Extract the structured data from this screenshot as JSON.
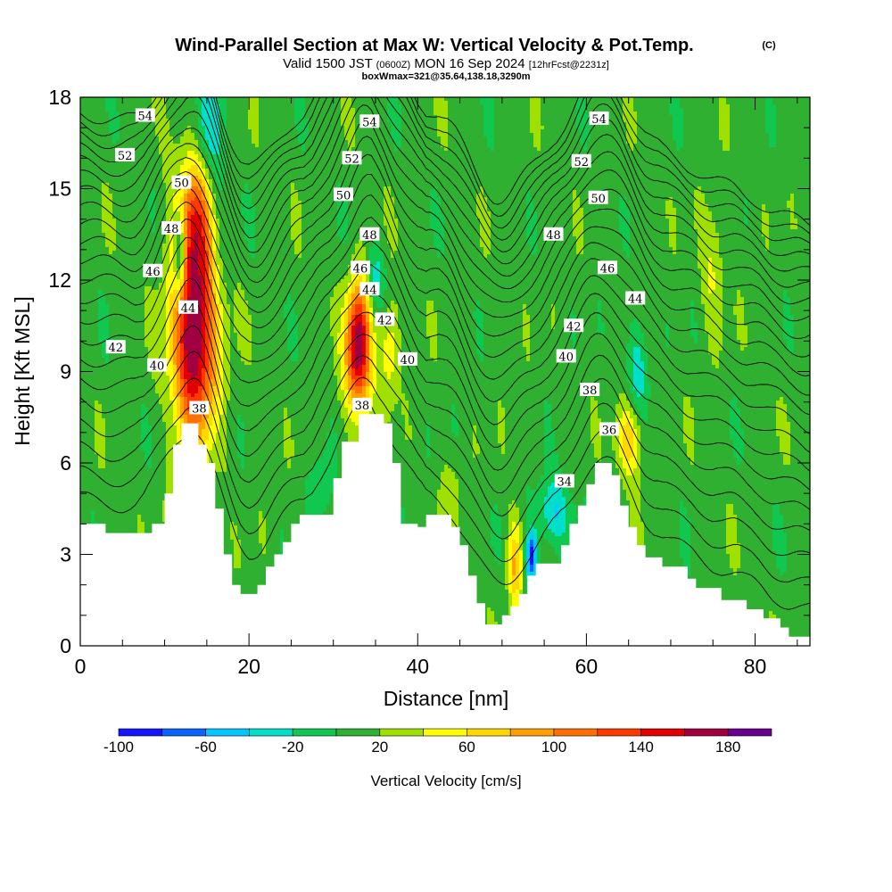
{
  "title": {
    "main": "Wind-Parallel Section at Max W: Vertical Velocity & Pot.Temp.",
    "copyright": "(C)",
    "valid_prefix": "Valid 1500 JST",
    "valid_utc": "(0600Z)",
    "valid_date": "MON 16 Sep 2024",
    "forecast": "[12hrFcst@2231z]",
    "box_info": "boxWmax=321@35.64,138.18,3290m"
  },
  "chart_data": {
    "type": "heatmap",
    "xlabel": "Distance [nm]",
    "ylabel": "Height [Kft MSL]",
    "xlim": [
      0,
      86.5
    ],
    "ylim": [
      0,
      18
    ],
    "x_ticks": [
      0,
      20,
      40,
      60,
      80
    ],
    "x_tick_labels": [
      "0",
      "20",
      "40",
      "60",
      "80"
    ],
    "y_ticks": [
      0,
      3,
      6,
      9,
      12,
      15,
      18
    ],
    "y_tick_labels": [
      "0",
      "3",
      "6",
      "9",
      "12",
      "15",
      "18"
    ],
    "colorbar": {
      "label": "Vertical Velocity [cm/s]",
      "range": [
        -100,
        200
      ],
      "tick_values": [
        -100,
        -60,
        -20,
        20,
        60,
        100,
        140,
        180
      ],
      "tick_labels": [
        "-100",
        "-60",
        "-20",
        "20",
        "60",
        "100",
        "140",
        "180"
      ],
      "colors": [
        "#1414ff",
        "#0a64ff",
        "#00c8ff",
        "#00e0c8",
        "#10c850",
        "#30b030",
        "#a0e000",
        "#ffff00",
        "#ffd800",
        "#ffa000",
        "#ff7000",
        "#ff3800",
        "#e00000",
        "#a00040",
        "#680090"
      ]
    },
    "background_velocity": 10,
    "terrain": [
      [
        0,
        4.0
      ],
      [
        3,
        4.0
      ],
      [
        3,
        3.7
      ],
      [
        8.5,
        3.7
      ],
      [
        8.5,
        4.0
      ],
      [
        10,
        4.0
      ],
      [
        10,
        5.0
      ],
      [
        11,
        5.0
      ],
      [
        11,
        6.6
      ],
      [
        12,
        6.6
      ],
      [
        12,
        7.3
      ],
      [
        14,
        7.3
      ],
      [
        14,
        6.6
      ],
      [
        15,
        6.6
      ],
      [
        15,
        6.0
      ],
      [
        16,
        6.0
      ],
      [
        16,
        4.5
      ],
      [
        17,
        4.5
      ],
      [
        17,
        3.0
      ],
      [
        18,
        3.0
      ],
      [
        18,
        2.0
      ],
      [
        19,
        2.0
      ],
      [
        19,
        1.7
      ],
      [
        21,
        1.7
      ],
      [
        21,
        2.0
      ],
      [
        22,
        2.0
      ],
      [
        22,
        2.6
      ],
      [
        23,
        2.6
      ],
      [
        23,
        3.0
      ],
      [
        24,
        3.0
      ],
      [
        24,
        3.4
      ],
      [
        25,
        3.4
      ],
      [
        25,
        4.0
      ],
      [
        26,
        4.0
      ],
      [
        26,
        4.3
      ],
      [
        30,
        4.3
      ],
      [
        30,
        5.5
      ],
      [
        31,
        5.5
      ],
      [
        31,
        6.7
      ],
      [
        33,
        6.7
      ],
      [
        33,
        7.6
      ],
      [
        36,
        7.6
      ],
      [
        36,
        7.3
      ],
      [
        37,
        7.3
      ],
      [
        37,
        6.0
      ],
      [
        38,
        6.0
      ],
      [
        38,
        4.0
      ],
      [
        40,
        4.0
      ],
      [
        40,
        3.9
      ],
      [
        41,
        3.9
      ],
      [
        41,
        4.3
      ],
      [
        44,
        4.3
      ],
      [
        44,
        3.9
      ],
      [
        45,
        3.9
      ],
      [
        45,
        3.3
      ],
      [
        46,
        3.3
      ],
      [
        46,
        2.3
      ],
      [
        47,
        2.3
      ],
      [
        47,
        1.4
      ],
      [
        48,
        1.4
      ],
      [
        48,
        0.7
      ],
      [
        50,
        0.7
      ],
      [
        50,
        1.0
      ],
      [
        51,
        1.0
      ],
      [
        51,
        1.3
      ],
      [
        52,
        1.3
      ],
      [
        52,
        1.7
      ],
      [
        53,
        1.7
      ],
      [
        53,
        2.3
      ],
      [
        54,
        2.3
      ],
      [
        54,
        2.7
      ],
      [
        57,
        2.7
      ],
      [
        57,
        3.3
      ],
      [
        58,
        3.3
      ],
      [
        58,
        4.0
      ],
      [
        59,
        4.0
      ],
      [
        59,
        4.6
      ],
      [
        60,
        4.6
      ],
      [
        60,
        5.3
      ],
      [
        61,
        5.3
      ],
      [
        61,
        6.0
      ],
      [
        63,
        6.0
      ],
      [
        63,
        5.6
      ],
      [
        64,
        5.6
      ],
      [
        64,
        4.6
      ],
      [
        65,
        4.6
      ],
      [
        65,
        3.9
      ],
      [
        66,
        3.9
      ],
      [
        66,
        3.3
      ],
      [
        67,
        3.3
      ],
      [
        67,
        2.9
      ],
      [
        69,
        2.9
      ],
      [
        69,
        2.6
      ],
      [
        72,
        2.6
      ],
      [
        72,
        2.2
      ],
      [
        73,
        2.2
      ],
      [
        73,
        1.9
      ],
      [
        76,
        1.9
      ],
      [
        76,
        1.5
      ],
      [
        79,
        1.5
      ],
      [
        79,
        1.2
      ],
      [
        81,
        1.2
      ],
      [
        81,
        0.9
      ],
      [
        83,
        0.9
      ],
      [
        83,
        0.6
      ],
      [
        84,
        0.6
      ],
      [
        84,
        0.3
      ],
      [
        86.5,
        0.3
      ]
    ],
    "velocity_features": [
      {
        "x": 13.5,
        "y": 11.0,
        "sx": 1.8,
        "sy": 3.0,
        "amp": 150
      },
      {
        "x": 13.8,
        "y": 9.5,
        "sx": 2.0,
        "sy": 1.6,
        "amp": 40
      },
      {
        "x": 13.6,
        "y": 14.0,
        "sx": 1.3,
        "sy": 1.2,
        "amp": 40
      },
      {
        "x": 11.8,
        "y": 12.8,
        "sx": 0.5,
        "sy": 1.0,
        "amp": -100
      },
      {
        "x": 15.5,
        "y": 17.0,
        "sx": 1.4,
        "sy": 1.2,
        "amp": -45
      },
      {
        "x": 16.5,
        "y": 14.0,
        "sx": 0.9,
        "sy": 1.6,
        "amp": -20
      },
      {
        "x": 33.0,
        "y": 10.0,
        "sx": 1.0,
        "sy": 1.4,
        "amp": 140
      },
      {
        "x": 32.8,
        "y": 9.0,
        "sx": 1.3,
        "sy": 1.4,
        "amp": 40
      },
      {
        "x": 36.6,
        "y": 9.7,
        "sx": 0.8,
        "sy": 1.1,
        "amp": 50
      },
      {
        "x": 35.0,
        "y": 12.0,
        "sx": 0.8,
        "sy": 0.8,
        "amp": -40
      },
      {
        "x": 28.5,
        "y": 5.2,
        "sx": 0.9,
        "sy": 0.9,
        "amp": -30
      },
      {
        "x": 51.5,
        "y": 2.6,
        "sx": 0.6,
        "sy": 1.0,
        "amp": 70
      },
      {
        "x": 53.5,
        "y": 2.9,
        "sx": 0.5,
        "sy": 0.6,
        "amp": -100
      },
      {
        "x": 56.0,
        "y": 4.4,
        "sx": 1.6,
        "sy": 0.8,
        "amp": -50
      },
      {
        "x": 65.0,
        "y": 6.8,
        "sx": 1.1,
        "sy": 0.9,
        "amp": 70
      },
      {
        "x": 66.0,
        "y": 9.0,
        "sx": 1.0,
        "sy": 1.2,
        "amp": -40
      },
      {
        "x": 75.0,
        "y": 12.5,
        "sx": 1.0,
        "sy": 1.5,
        "amp": 30
      },
      {
        "x": 44.0,
        "y": 5.0,
        "sx": 1.2,
        "sy": 0.8,
        "amp": 20
      }
    ],
    "theta_contours": {
      "first": 34,
      "last": 55,
      "step": 1
    },
    "theta_labels": [
      {
        "value": "54",
        "x": 7.7,
        "y": 17.4
      },
      {
        "value": "52",
        "x": 5.3,
        "y": 16.1
      },
      {
        "value": "50",
        "x": 12.0,
        "y": 15.2
      },
      {
        "value": "48",
        "x": 10.8,
        "y": 13.7
      },
      {
        "value": "46",
        "x": 8.6,
        "y": 12.3
      },
      {
        "value": "44",
        "x": 12.8,
        "y": 11.1
      },
      {
        "value": "42",
        "x": 4.2,
        "y": 9.8
      },
      {
        "value": "40",
        "x": 9.1,
        "y": 9.2
      },
      {
        "value": "38",
        "x": 14.1,
        "y": 7.8
      },
      {
        "value": "54",
        "x": 34.3,
        "y": 17.2
      },
      {
        "value": "52",
        "x": 32.2,
        "y": 16.0
      },
      {
        "value": "50",
        "x": 31.2,
        "y": 14.8
      },
      {
        "value": "48",
        "x": 34.3,
        "y": 13.5
      },
      {
        "value": "46",
        "x": 33.2,
        "y": 12.4
      },
      {
        "value": "44",
        "x": 34.3,
        "y": 11.7
      },
      {
        "value": "42",
        "x": 36.1,
        "y": 10.7
      },
      {
        "value": "40",
        "x": 38.8,
        "y": 9.4
      },
      {
        "value": "38",
        "x": 33.4,
        "y": 7.9
      },
      {
        "value": "54",
        "x": 61.5,
        "y": 17.3
      },
      {
        "value": "52",
        "x": 59.4,
        "y": 15.9
      },
      {
        "value": "50",
        "x": 61.4,
        "y": 14.7
      },
      {
        "value": "48",
        "x": 56.1,
        "y": 13.5
      },
      {
        "value": "46",
        "x": 62.5,
        "y": 12.4
      },
      {
        "value": "44",
        "x": 65.8,
        "y": 11.4
      },
      {
        "value": "42",
        "x": 58.5,
        "y": 10.5
      },
      {
        "value": "40",
        "x": 57.6,
        "y": 9.5
      },
      {
        "value": "38",
        "x": 60.4,
        "y": 8.4
      },
      {
        "value": "36",
        "x": 62.7,
        "y": 7.1
      },
      {
        "value": "34",
        "x": 57.4,
        "y": 5.4
      }
    ]
  }
}
